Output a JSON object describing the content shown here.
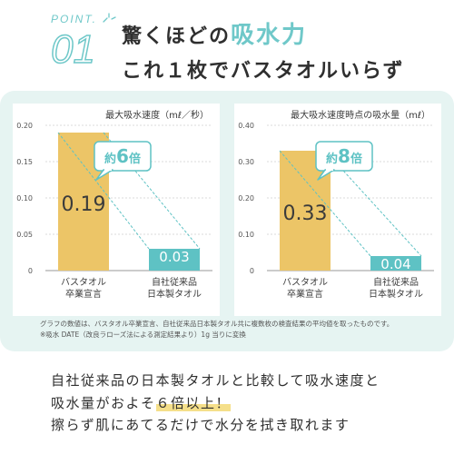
{
  "header": {
    "point_label": "POINT.",
    "point_number": "01",
    "headline_line1_pre": "驚くほどの",
    "headline_line1_accent": "吸水力",
    "headline_line2": "これ１枚でバスタオルいらず"
  },
  "chart_data": [
    {
      "type": "bar",
      "title": "最大吸水速度（mℓ／秒）",
      "categories": [
        "バスタオル\n卒業宣言",
        "自社従来品\n日本製タオル"
      ],
      "values": [
        0.19,
        0.03
      ],
      "value_labels": [
        "0.19",
        "0.03"
      ],
      "yticks": [
        "0.20",
        "0.15",
        "0.10",
        "0.05",
        "0"
      ],
      "ylim": [
        0,
        0.2
      ],
      "callout": "約6倍",
      "bar_colors": [
        "#ecc567",
        "#5ec2c4"
      ]
    },
    {
      "type": "bar",
      "title": "最大吸水速度時点の吸水量（mℓ）",
      "categories": [
        "バスタオル\n卒業宣言",
        "自社従来品\n日本製タオル"
      ],
      "values": [
        0.33,
        0.04
      ],
      "value_labels": [
        "0.33",
        "0.04"
      ],
      "yticks": [
        "0.40",
        "0.30",
        "0.20",
        "0.10",
        "0"
      ],
      "ylim": [
        0,
        0.4
      ],
      "callout": "約8倍",
      "bar_colors": [
        "#ecc567",
        "#5ec2c4"
      ]
    }
  ],
  "notes": {
    "line1": "グラフの数値は、バスタオル卒業宣言、自社従来品日本製タオル共に複数枚の検査結果の平均値を取ったものです。",
    "line2": "※吸水 DATE（改良ラローズ法による測定結果より）1g 当りに変換"
  },
  "body": {
    "line1": "自社従来品の日本製タオルと比較して吸水速度と",
    "line2_pre": "吸水量がおよそ",
    "line2_highlight": "６倍以上！",
    "line3": "擦らず肌にあてるだけで水分を拭き取れます"
  },
  "colors": {
    "accent": "#6fc8c9",
    "bar_primary": "#ecc567",
    "bar_secondary": "#5ec2c4",
    "panel_bg": "#e6f4f2"
  }
}
